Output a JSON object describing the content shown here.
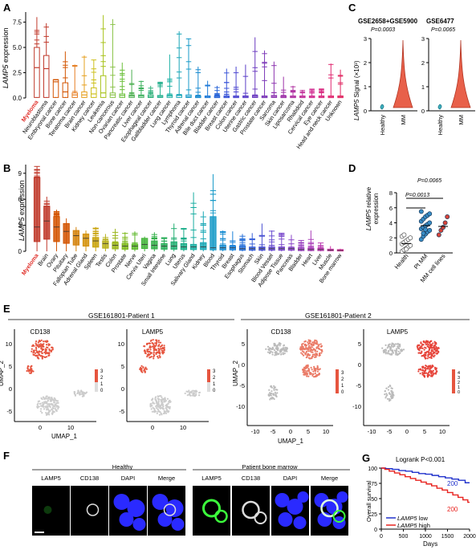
{
  "panels": {
    "A": "A",
    "B": "B",
    "C": "C",
    "D": "D",
    "E": "E",
    "F": "F",
    "G": "G"
  },
  "panelA": {
    "ylabel_gene": "LAMP5",
    "ylabel_rest": " expression",
    "yticks": [
      "0.0",
      "2.5",
      "5.0",
      "7.5"
    ],
    "highlight": "Myeloma",
    "categories": [
      "Myeloma",
      "Neuroblastoma",
      "Embryonal cancer",
      "Bone cancer",
      "Teratoma cancer",
      "Brain cancer",
      "Kidney cancer",
      "Leukemia",
      "Non-cancerous",
      "Ovarian cancer",
      "Pancreatic cancer",
      "Liver cancer",
      "Esophageal cancer",
      "Gallbladder cancer",
      "Lung cancer",
      "Lymphoma",
      "Thyroid cancer",
      "Adrenal cancer",
      "Bile duct cancer",
      "Bladder cancer",
      "Breast cancer",
      "Colon cancer",
      "Uterine cancer",
      "Gastric cancer",
      "Prostate cancer",
      "Sarcoma",
      "Skin cancer",
      "Liposarcoma",
      "Rhabdoid",
      "Cervical cancer",
      "Eye cancer",
      "Head and neck cancer",
      "Unknown"
    ],
    "colors": [
      "#c0392b",
      "#c0392b",
      "#d35400",
      "#d35400",
      "#e67e22",
      "#e6a020",
      "#cdbf1a",
      "#a8c21a",
      "#8bc34a",
      "#6bbf3a",
      "#4caf50",
      "#3aaf5a",
      "#2eb07a",
      "#27b08f",
      "#20b2a6",
      "#1aa6b8",
      "#1a9bc8",
      "#1a8bd0",
      "#1e7ad8",
      "#2a66d8",
      "#3a55d8",
      "#4a45d0",
      "#5a3ec8",
      "#6b3bc0",
      "#7c38b8",
      "#8d35b0",
      "#9e32a8",
      "#af30a0",
      "#c02e98",
      "#d02c90",
      "#d82a80",
      "#e02870",
      "#e02660"
    ]
  },
  "panelB": {
    "ylabel_gene": "LAMP5",
    "ylabel_rest": " expression",
    "yticks": [
      "0",
      "3",
      "6",
      "9"
    ],
    "highlight": "Myeloma",
    "categories": [
      "Myeloma",
      "Brain",
      "Ovary",
      "Pituitary",
      "Fallopian Tube",
      "Adrenal Gland",
      "Spleen",
      "Testis",
      "Colon",
      "Prostate",
      "Nerve",
      "Cervix Uteri",
      "Vagina",
      "Small Intestine",
      "Lung",
      "Uterus",
      "Salivary Gland",
      "Kidney",
      "Blood",
      "Thyroid",
      "Breast",
      "Esophagus",
      "Stomach",
      "Skin",
      "Blood Vessel",
      "Adipose Tissue",
      "Pancreas",
      "Bladder",
      "Heart",
      "Liver",
      "Muscle",
      "Bone marrow"
    ],
    "colors": [
      "#c0392b",
      "#c0392b",
      "#d35400",
      "#d35400",
      "#d4820b",
      "#d4920b",
      "#c9a30b",
      "#b7b01a",
      "#9ab51a",
      "#7cb81a",
      "#5cb82a",
      "#44b53a",
      "#34b04a",
      "#2aae5a",
      "#22ae72",
      "#1aae8a",
      "#1aaea2",
      "#1aa8b6",
      "#1a9bc8",
      "#1a8ed2",
      "#1a82da",
      "#2a72da",
      "#3a62da",
      "#4a52d2",
      "#6a4ed0",
      "#7a4acc",
      "#8a46c8",
      "#9a42c0",
      "#aa3eb8",
      "#ba3ab0",
      "#ca36a8",
      "#da32a0"
    ]
  },
  "panelC": {
    "series1_title": "GSE2658+GSE5900",
    "series2_title": "GSE6477",
    "p1": "P=0.0003",
    "p2": "P=0.0065",
    "ylabel_gene": "LAMP5",
    "ylabel_rest": " Signal (×10³)",
    "yticks": [
      "0",
      "1",
      "2",
      "3"
    ],
    "xcats": [
      "Healthy",
      "MM"
    ]
  },
  "panelD": {
    "ylabel_gene": "LAMP5",
    "ylabel_rest": " relative expression",
    "yticks": [
      "0",
      "2",
      "4",
      "6",
      "8"
    ],
    "p1": "P=0.0013",
    "p2": "P=0.0065",
    "xcats": [
      "Health",
      "Pt MM",
      "MM cell lines"
    ]
  },
  "panelE": {
    "patient1": "GSE161801-Patient 1",
    "patient2": "GSE161801-Patient 2",
    "cd138": "CD138",
    "lamp5": "LAMP5",
    "umap1": "UMAP_1",
    "umap2": "UMAP_2",
    "p1_xticks": [
      "0",
      "10"
    ],
    "p1_yticks": [
      "10",
      "5",
      "0",
      "-5"
    ],
    "p2_xticks": [
      "-10",
      "-5",
      "0",
      "5",
      "10"
    ],
    "p2_yticks": [
      "5",
      "0",
      "-5",
      "-10"
    ],
    "scale1": [
      "3",
      "2",
      "1",
      "0"
    ],
    "scale2": [
      "4",
      "3",
      "2",
      "1",
      "0"
    ]
  },
  "panelF": {
    "healthy": "Healthy",
    "patient": "Patient bone marrow",
    "channels": [
      "LAMP5",
      "CD138",
      "DAPI",
      "Merge"
    ]
  },
  "panelG": {
    "title": "Logrank P<0.001",
    "ylabel": "Overall survival",
    "xlabel": "Days",
    "yticks": [
      "100",
      "75",
      "50",
      "25",
      "0"
    ],
    "xticks": [
      "0",
      "500",
      "1000",
      "1500",
      "2000"
    ],
    "n_low": "200",
    "n_high": "200",
    "legend_low_gene": "LAMP5",
    "legend_low": " low",
    "legend_high_gene": "LAMP5",
    "legend_high": " high",
    "low_color": "#2233cc",
    "high_color": "#e8231f"
  }
}
